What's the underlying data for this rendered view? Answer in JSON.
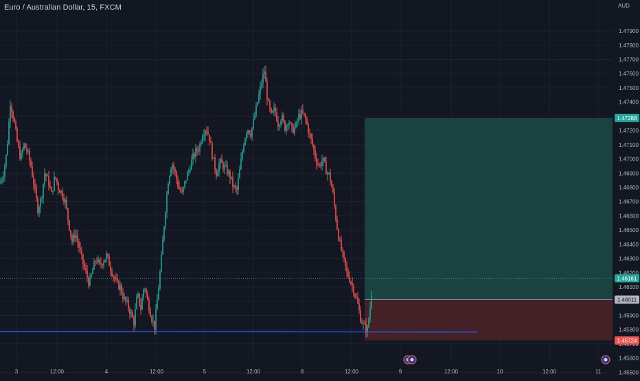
{
  "header": {
    "symbol_title": "Euro / Australian Dollar, 15, FXCM",
    "currency": "AUD"
  },
  "colors": {
    "background": "#131722",
    "up_candle": "#26a69a",
    "down_candle": "#ef5350",
    "profit_zone": "#1c4a43",
    "loss_zone": "#4a2228",
    "trend_line": "#2962ff",
    "axis_text": "#b2b5be",
    "grid": "#1e222d"
  },
  "chart_data": {
    "type": "candlestick",
    "title": "Euro / Australian Dollar, 15, FXCM",
    "ylabel": "AUD",
    "ylim": [
      1.4555,
      1.4805
    ],
    "y_ticks": [
      "1.47900",
      "1.47800",
      "1.47700",
      "1.47600",
      "1.47500",
      "1.47400",
      "1.47300",
      "1.47200",
      "1.47100",
      "1.47000",
      "1.46900",
      "1.46800",
      "1.46700",
      "1.46600",
      "1.46500",
      "1.46400",
      "1.46300",
      "1.46200",
      "1.46100",
      "1.46000",
      "1.45900",
      "1.45800",
      "1.45700",
      "1.45600",
      "1.45500"
    ],
    "x_ticks": [
      "3",
      "12:00",
      "4",
      "12:00",
      "5",
      "12:00",
      "8",
      "12:00",
      "9",
      "12:00",
      "10",
      "12:00",
      "11"
    ],
    "price_path": [
      [
        0,
        1.4683
      ],
      [
        5,
        1.469
      ],
      [
        10,
        1.4705
      ],
      [
        15,
        1.474
      ],
      [
        20,
        1.4728
      ],
      [
        25,
        1.4712
      ],
      [
        30,
        1.47
      ],
      [
        35,
        1.471
      ],
      [
        40,
        1.4705
      ],
      [
        45,
        1.4695
      ],
      [
        50,
        1.468
      ],
      [
        55,
        1.4665
      ],
      [
        60,
        1.4672
      ],
      [
        65,
        1.469
      ],
      [
        70,
        1.4685
      ],
      [
        75,
        1.4675
      ],
      [
        80,
        1.4688
      ],
      [
        85,
        1.468
      ],
      [
        90,
        1.4676
      ],
      [
        95,
        1.467
      ],
      [
        100,
        1.4655
      ],
      [
        105,
        1.4642
      ],
      [
        110,
        1.4648
      ],
      [
        115,
        1.4638
      ],
      [
        120,
        1.4628
      ],
      [
        125,
        1.462
      ],
      [
        130,
        1.4612
      ],
      [
        135,
        1.4622
      ],
      [
        140,
        1.463
      ],
      [
        145,
        1.4625
      ],
      [
        150,
        1.4628
      ],
      [
        155,
        1.4632
      ],
      [
        160,
        1.4625
      ],
      [
        165,
        1.4618
      ],
      [
        170,
        1.4612
      ],
      [
        175,
        1.461
      ],
      [
        180,
        1.4602
      ],
      [
        185,
        1.4598
      ],
      [
        190,
        1.4592
      ],
      [
        195,
        1.4585
      ],
      [
        200,
        1.4605
      ],
      [
        205,
        1.4595
      ],
      [
        210,
        1.4612
      ],
      [
        215,
        1.46
      ],
      [
        220,
        1.459
      ],
      [
        225,
        1.4582
      ],
      [
        230,
        1.4605
      ],
      [
        235,
        1.463
      ],
      [
        240,
        1.466
      ],
      [
        245,
        1.4685
      ],
      [
        250,
        1.4698
      ],
      [
        255,
        1.469
      ],
      [
        260,
        1.468
      ],
      [
        265,
        1.4675
      ],
      [
        270,
        1.4685
      ],
      [
        275,
        1.4692
      ],
      [
        280,
        1.47
      ],
      [
        285,
        1.4705
      ],
      [
        290,
        1.4708
      ],
      [
        295,
        1.4718
      ],
      [
        300,
        1.4722
      ],
      [
        305,
        1.4715
      ],
      [
        310,
        1.47
      ],
      [
        315,
        1.469
      ],
      [
        320,
        1.4698
      ],
      [
        325,
        1.4695
      ],
      [
        330,
        1.4692
      ],
      [
        335,
        1.4688
      ],
      [
        340,
        1.468
      ],
      [
        345,
        1.4678
      ],
      [
        350,
        1.4695
      ],
      [
        355,
        1.4712
      ],
      [
        360,
        1.4722
      ],
      [
        365,
        1.4718
      ],
      [
        370,
        1.4728
      ],
      [
        375,
        1.474
      ],
      [
        380,
        1.4752
      ],
      [
        385,
        1.4762
      ],
      [
        390,
        1.474
      ],
      [
        395,
        1.473
      ],
      [
        400,
        1.4735
      ],
      [
        405,
        1.4725
      ],
      [
        410,
        1.473
      ],
      [
        415,
        1.4722
      ],
      [
        420,
        1.4728
      ],
      [
        425,
        1.472
      ],
      [
        430,
        1.4722
      ],
      [
        435,
        1.473
      ],
      [
        440,
        1.4732
      ],
      [
        445,
        1.4728
      ],
      [
        450,
        1.4718
      ],
      [
        455,
        1.471
      ],
      [
        460,
        1.47
      ],
      [
        465,
        1.4695
      ],
      [
        470,
        1.47
      ],
      [
        475,
        1.4692
      ],
      [
        480,
        1.4688
      ],
      [
        485,
        1.4675
      ],
      [
        490,
        1.4655
      ],
      [
        495,
        1.464
      ],
      [
        500,
        1.463
      ],
      [
        505,
        1.462
      ],
      [
        510,
        1.4615
      ],
      [
        515,
        1.4608
      ],
      [
        520,
        1.46
      ],
      [
        525,
        1.4588
      ],
      [
        530,
        1.4582
      ],
      [
        535,
        1.458
      ],
      [
        540,
        1.46
      ],
      [
        542,
        1.4612
      ]
    ],
    "annotations": {
      "entry_price": 1.46011,
      "current_price": 1.46161,
      "target_price": 1.47288,
      "stop_price": 1.45724,
      "trend_line_price": 1.4579
    },
    "price_labels": {
      "target": "1.47288",
      "current": "1.46161",
      "entry": "1.46011",
      "stop": "1.45724"
    }
  }
}
